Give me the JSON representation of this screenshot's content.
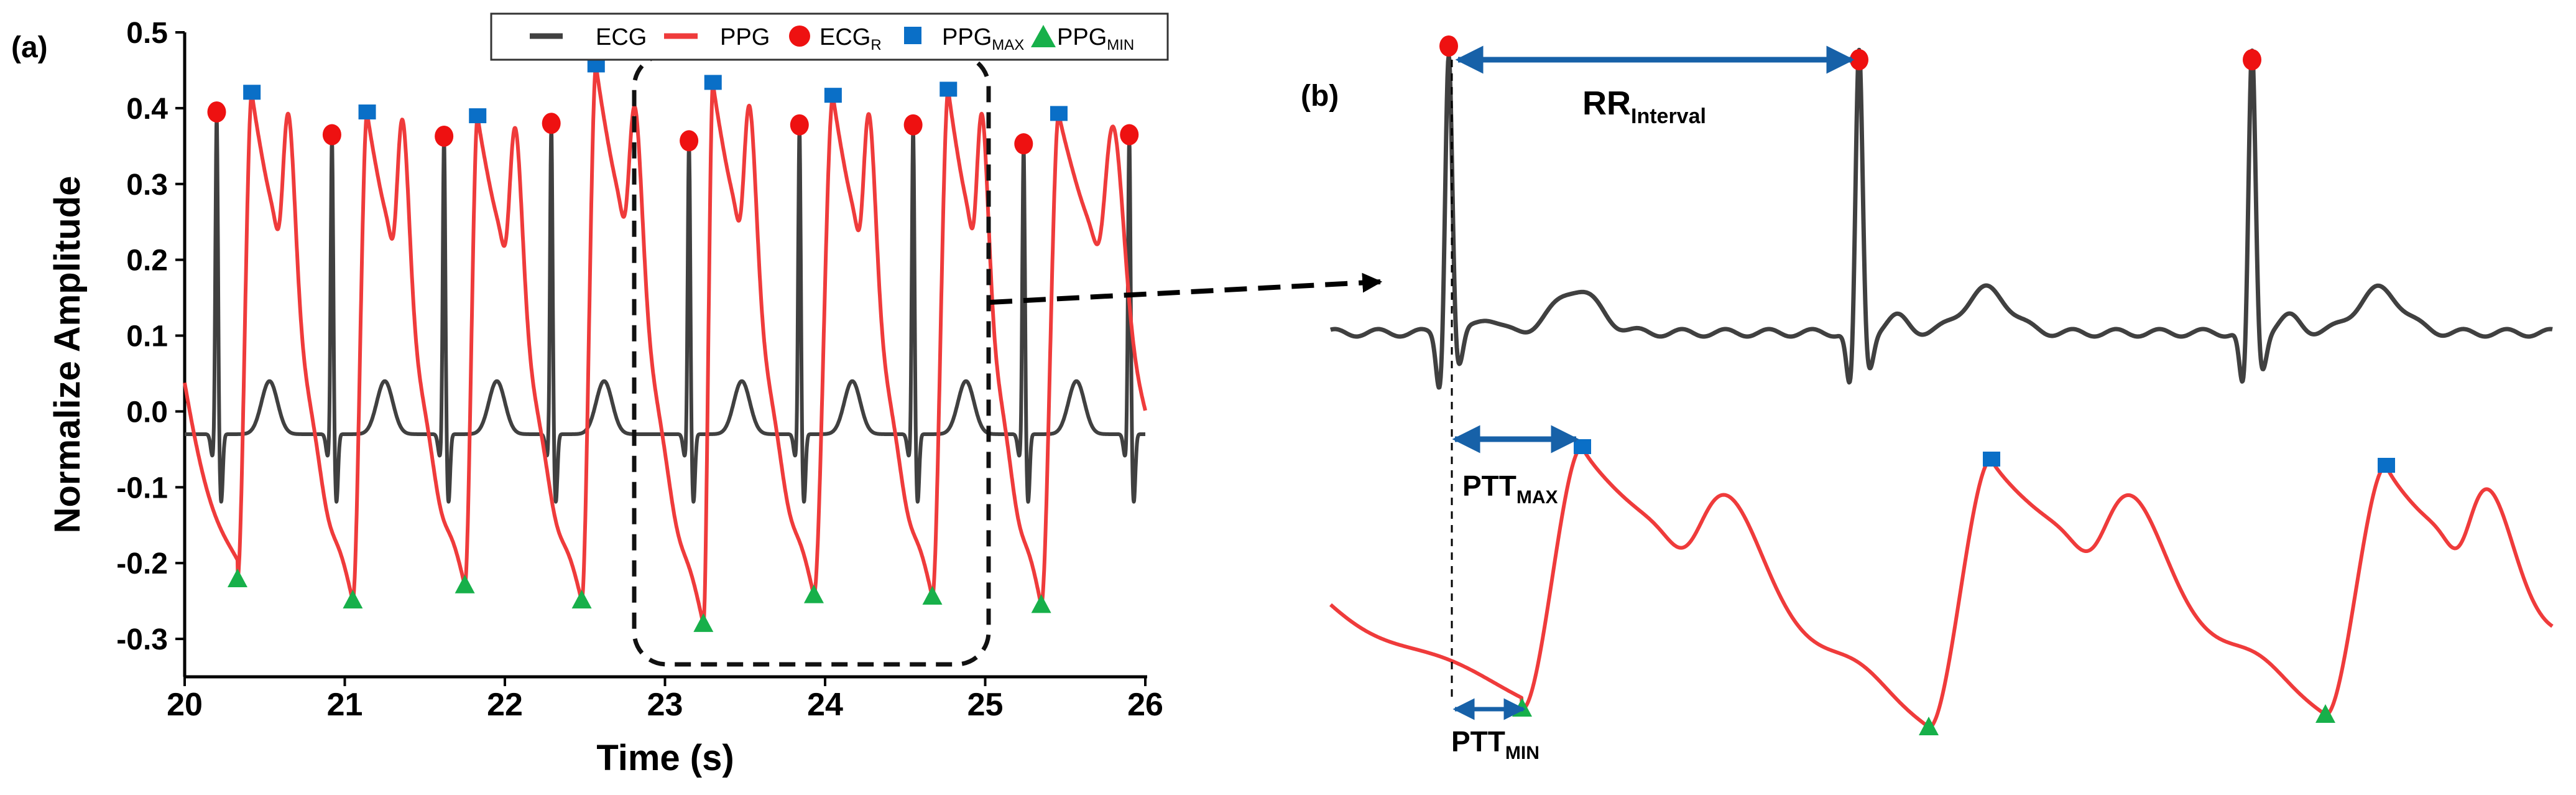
{
  "panel_a_label": "(a)",
  "panel_b_label": "(b)",
  "colors": {
    "ecg": "#404040",
    "ppg": "#ef3b3b",
    "ecg_r": "#ee1111",
    "ppg_max": "#0a6fc7",
    "ppg_min": "#17b04a",
    "arrow": "#1761a8"
  },
  "legend": {
    "ecg": "ECG",
    "ppg": "PPG",
    "ecg_r_main": "ECG",
    "ecg_r_sub": "R",
    "ppg_max_main": "PPG",
    "ppg_max_sub": "MAX",
    "ppg_min_main": "PPG",
    "ppg_min_sub": "MIN"
  },
  "annotations_b": {
    "rr_main": "RR",
    "rr_sub": "Interval",
    "ptt_max_main": "PTT",
    "ptt_max_sub": "MAX",
    "ptt_min_main": "PTT",
    "ptt_min_sub": "MIN"
  },
  "chart_data": [
    {
      "type": "line",
      "panel": "(a)",
      "xlabel": "Time (s)",
      "ylabel": "Normalize Amplitude",
      "xlim": [
        20,
        26
      ],
      "ylim": [
        -0.35,
        0.5
      ],
      "xticks": [
        20,
        21,
        22,
        23,
        24,
        25,
        26
      ],
      "yticks": [
        0.5,
        0.4,
        0.3,
        0.2,
        0.1,
        0.0,
        -0.1,
        -0.2,
        -0.3
      ],
      "ytick_labels": [
        "0.5",
        "0.4",
        "0.3",
        "0.2",
        "0.1",
        "0.0",
        "-0.1",
        "-0.2",
        "-0.3"
      ],
      "grid": false,
      "legend_position": "top-right",
      "series": [
        {
          "name": "ECG",
          "style": "line",
          "description": "ECG waveform with R peaks"
        },
        {
          "name": "PPG",
          "style": "line",
          "description": "PPG waveform"
        },
        {
          "name": "ECG_R",
          "style": "marker-circle",
          "x": [
            20.2,
            20.92,
            21.62,
            22.29,
            23.15,
            23.84,
            24.55,
            25.24,
            25.9
          ],
          "y": [
            0.395,
            0.365,
            0.363,
            0.38,
            0.357,
            0.378,
            0.378,
            0.353,
            0.365
          ]
        },
        {
          "name": "PPG_MAX",
          "style": "marker-square",
          "x": [
            20.42,
            21.14,
            21.83,
            22.57,
            23.3,
            24.05,
            24.77,
            25.46
          ],
          "y": [
            0.421,
            0.395,
            0.39,
            0.457,
            0.434,
            0.417,
            0.425,
            0.393
          ]
        },
        {
          "name": "PPG_MIN",
          "style": "marker-triangle",
          "x": [
            20.33,
            21.05,
            21.75,
            22.48,
            23.24,
            23.93,
            24.67,
            25.35
          ],
          "y": [
            -0.222,
            -0.25,
            -0.23,
            -0.25,
            -0.281,
            -0.243,
            -0.245,
            -0.256
          ]
        }
      ]
    }
  ]
}
